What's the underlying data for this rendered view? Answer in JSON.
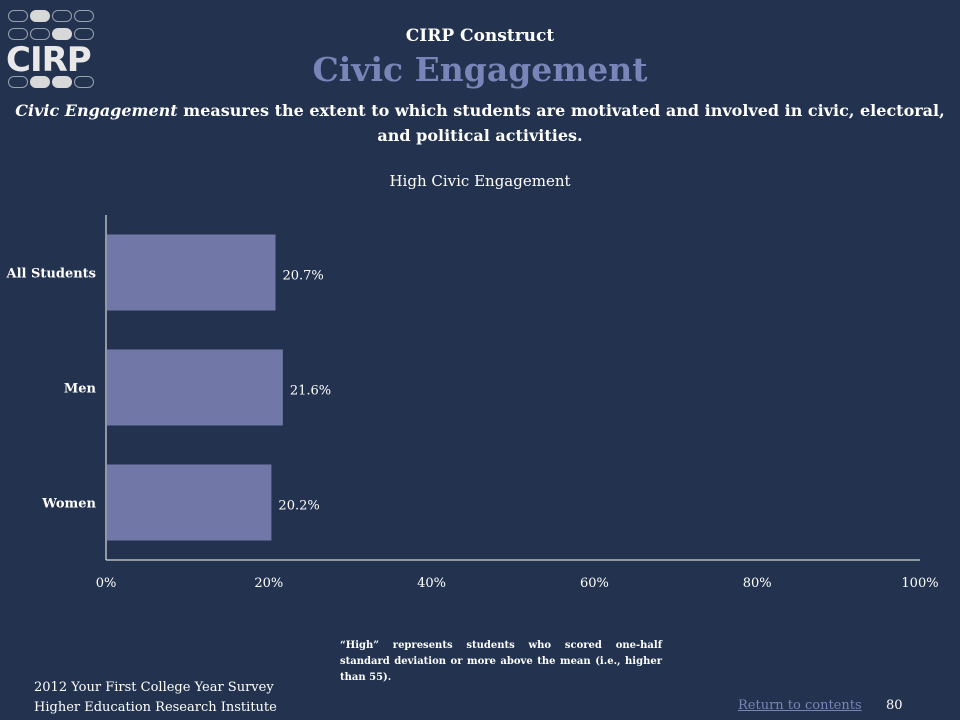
{
  "logo": {
    "text": "CIRP"
  },
  "header": {
    "construct": "CIRP Construct",
    "title": "Civic Engagement",
    "description_em": "Civic Engagement",
    "description_rest": " measures the extent to which students are motivated and involved in civic, electoral, and political activities."
  },
  "chart_data": {
    "type": "bar",
    "orientation": "horizontal",
    "title": "High Civic Engagement",
    "categories": [
      "All Students",
      "Men",
      "Women"
    ],
    "values": [
      20.7,
      21.6,
      20.2
    ],
    "value_labels": [
      "20.7%",
      "21.6%",
      "20.2%"
    ],
    "xlim": [
      0,
      100
    ],
    "x_ticks": [
      0,
      20,
      40,
      60,
      80,
      100
    ],
    "x_tick_labels": [
      "0%",
      "20%",
      "40%",
      "60%",
      "80%",
      "100%"
    ],
    "grid": false,
    "bar_color": "#7178a8"
  },
  "note": "“High” represents students who scored one-half standard deviation or more above the mean (i.e., higher than 55).",
  "footer": {
    "line1": "2012 Your First College Year Survey",
    "line2": "Higher Education Research Institute",
    "return_link": "Return to contents",
    "page_number": "80"
  },
  "colors": {
    "background": "#23334f",
    "title_accent": "#7a84b8",
    "bar": "#7178a8"
  }
}
